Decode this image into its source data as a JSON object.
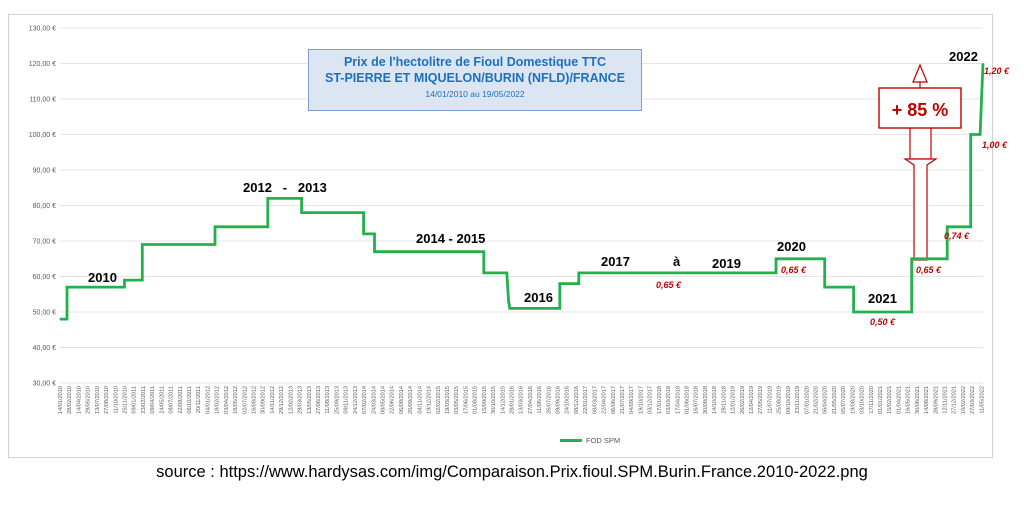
{
  "chart_data": {
    "type": "line",
    "title": "Prix de l'hectolitre de Fioul Domestique TTC",
    "subtitle": "ST-PIERRE ET MIQUELON/BURIN (NFLD)/FRANCE",
    "date_range": "14/01/2010 au 19/05/2022",
    "ylim": [
      30,
      130
    ],
    "y_ticks": [
      "30,00 €",
      "40,00 €",
      "50,00 €",
      "60,00 €",
      "70,00 €",
      "80,00 €",
      "90,00 €",
      "100,00 €",
      "110,00 €",
      "120,00 €",
      "130,00 €"
    ],
    "x_ticks": [
      "14/01/2010",
      "28/02/2010",
      "14/04/2010",
      "29/05/2010",
      "13/07/2010",
      "27/08/2010",
      "11/10/2010",
      "25/11/2010",
      "09/01/2011",
      "23/02/2011",
      "09/04/2011",
      "24/05/2011",
      "08/07/2011",
      "22/08/2011",
      "06/10/2011",
      "20/11/2011",
      "04/01/2012",
      "18/02/2012",
      "03/04/2012",
      "18/05/2012",
      "02/07/2012",
      "16/08/2012",
      "30/09/2012",
      "14/11/2012",
      "29/12/2012",
      "12/02/2013",
      "29/03/2013",
      "13/05/2013",
      "27/06/2013",
      "11/08/2013",
      "25/09/2013",
      "09/11/2013",
      "24/12/2013",
      "07/02/2014",
      "24/03/2014",
      "08/05/2014",
      "22/06/2014",
      "06/08/2014",
      "20/09/2014",
      "04/11/2014",
      "19/12/2014",
      "02/02/2015",
      "19/03/2015",
      "03/05/2015",
      "17/06/2015",
      "01/08/2015",
      "15/09/2015",
      "30/10/2015",
      "14/12/2015",
      "28/01/2016",
      "13/03/2016",
      "27/04/2016",
      "11/06/2016",
      "26/07/2016",
      "09/09/2016",
      "24/10/2016",
      "08/12/2016",
      "22/01/2017",
      "08/03/2017",
      "22/04/2017",
      "06/06/2017",
      "21/07/2017",
      "04/09/2017",
      "19/10/2017",
      "03/12/2017",
      "17/01/2018",
      "03/03/2018",
      "17/04/2018",
      "01/06/2018",
      "16/07/2018",
      "30/08/2018",
      "14/10/2018",
      "28/11/2018",
      "12/01/2019",
      "26/02/2019",
      "12/04/2019",
      "27/05/2019",
      "11/07/2019",
      "25/08/2019",
      "09/10/2019",
      "23/11/2019",
      "07/01/2020",
      "21/02/2020",
      "06/04/2020",
      "21/05/2020",
      "05/07/2020",
      "19/08/2020",
      "03/10/2020",
      "17/11/2020",
      "01/01/2021",
      "15/02/2021",
      "01/04/2021",
      "16/05/2021",
      "30/06/2021",
      "14/08/2021",
      "28/09/2021",
      "12/11/2021",
      "27/12/2021",
      "10/02/2022",
      "27/03/2022",
      "11/05/2022"
    ],
    "series": [
      {
        "name": "FOD SPM",
        "color": "#22b14c",
        "points": [
          [
            "14/01/2010",
            48
          ],
          [
            "17/02/2010",
            48
          ],
          [
            "17/02/2010",
            57
          ],
          [
            "25/11/2010",
            57
          ],
          [
            "25/11/2010",
            59
          ],
          [
            "20/02/2011",
            59
          ],
          [
            "20/02/2011",
            69
          ],
          [
            "10/02/2012",
            69
          ],
          [
            "10/02/2012",
            74
          ],
          [
            "25/10/2012",
            74
          ],
          [
            "25/10/2012",
            82
          ],
          [
            "08/04/2013",
            82
          ],
          [
            "08/04/2013",
            78
          ],
          [
            "05/02/2014",
            78
          ],
          [
            "05/02/2014",
            72
          ],
          [
            "30/03/2014",
            72
          ],
          [
            "30/03/2014",
            67
          ],
          [
            "15/09/2015",
            67
          ],
          [
            "15/09/2015",
            61
          ],
          [
            "05/01/2016",
            61
          ],
          [
            "14/01/2016",
            53
          ],
          [
            "20/01/2016",
            51
          ],
          [
            "20/09/2016",
            51
          ],
          [
            "20/09/2016",
            58
          ],
          [
            "22/12/2016",
            58
          ],
          [
            "22/12/2016",
            61
          ],
          [
            "12/08/2019",
            61
          ],
          [
            "12/08/2019",
            65
          ],
          [
            "06/04/2020",
            65
          ],
          [
            "06/04/2020",
            57
          ],
          [
            "25/08/2020",
            57
          ],
          [
            "25/08/2020",
            50
          ],
          [
            "05/06/2021",
            50
          ],
          [
            "05/06/2021",
            65
          ],
          [
            "25/11/2021",
            65
          ],
          [
            "25/11/2021",
            74
          ],
          [
            "20/03/2022",
            74
          ],
          [
            "20/03/2022",
            100
          ],
          [
            "05/05/2022",
            100
          ],
          [
            "19/05/2022",
            120
          ]
        ]
      }
    ],
    "annotations": {
      "year_labels": [
        "2010",
        "2012   -   2013",
        "2014 - 2015",
        "2016",
        "2017",
        "à",
        "2019",
        "2020",
        "2021",
        "2022"
      ],
      "price_labels": [
        "0,65 €",
        "0,65 €",
        "0,50 €",
        "0,65 €",
        "0,74 €",
        "1,00 €",
        "1,20 €"
      ],
      "increase_label": "+ 85 %"
    },
    "grid": true,
    "legend_position": "bottom-center",
    "source_text": "source : https://www.hardysas.com/img/Comparaison.Prix.fioul.SPM.Burin.France.2010-2022.png"
  }
}
